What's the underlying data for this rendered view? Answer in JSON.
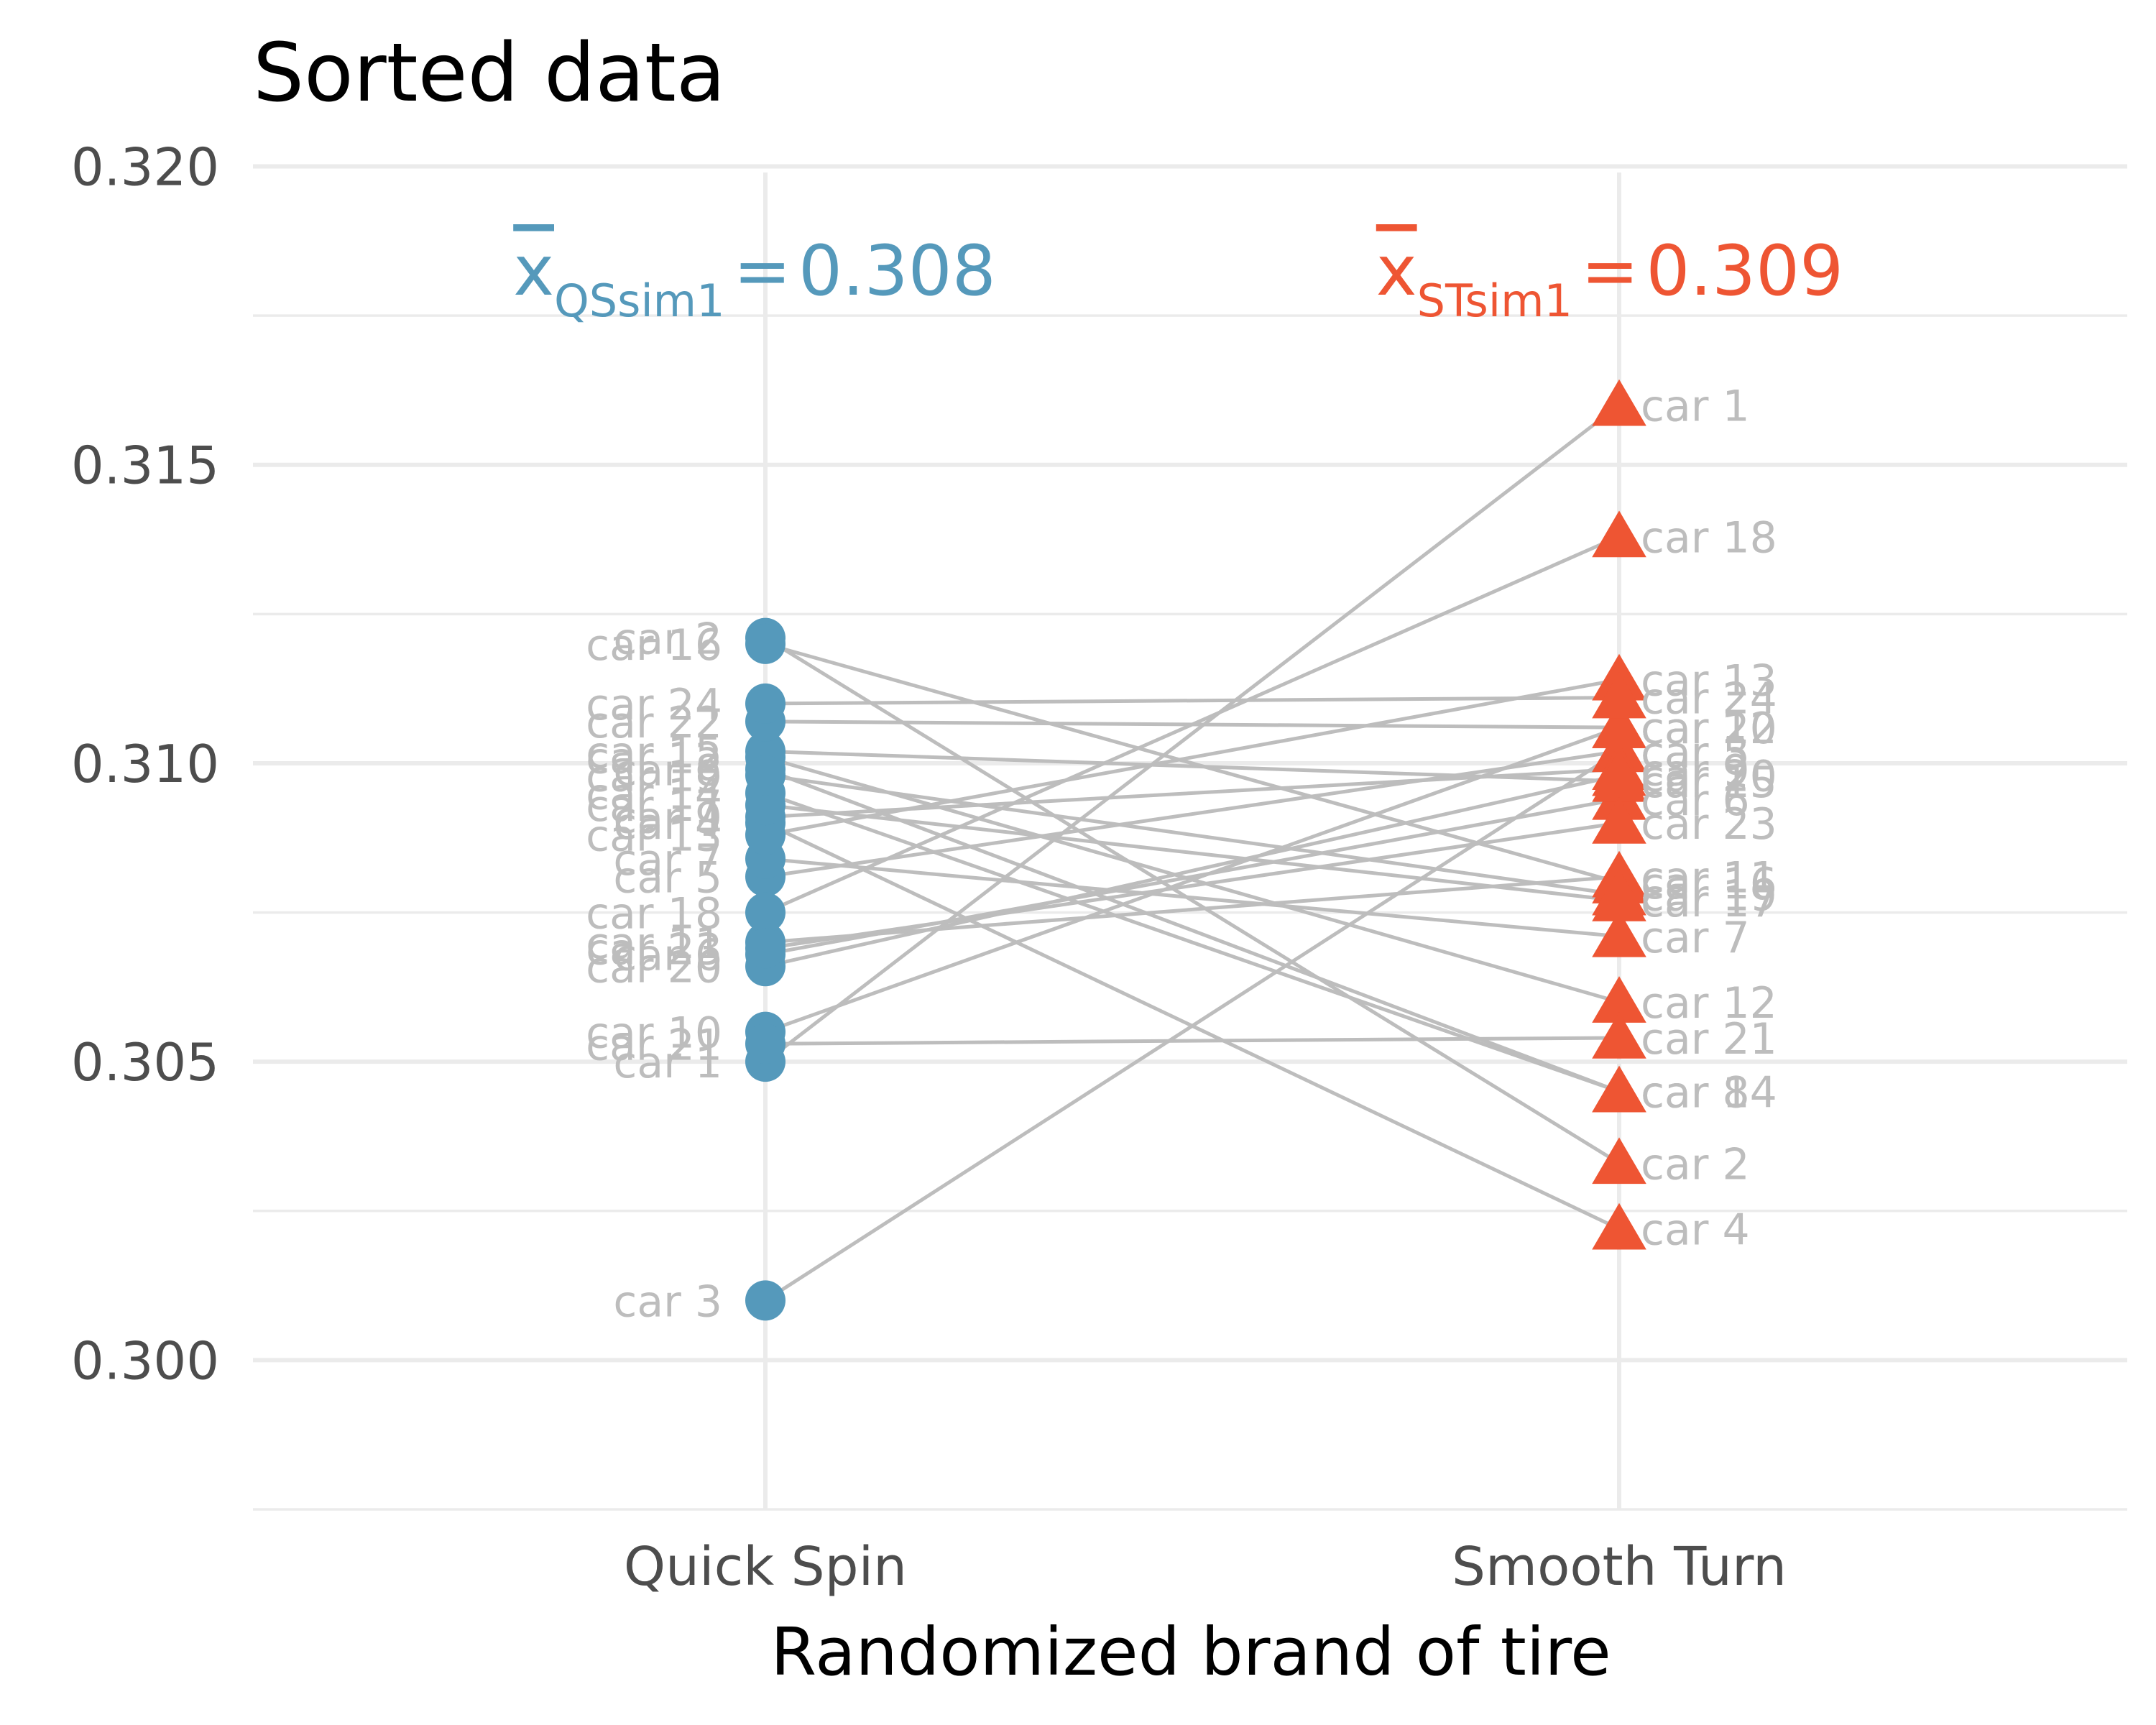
{
  "chart_data": {
    "type": "scatter",
    "title": "Sorted data",
    "xlabel": "Randomized brand of tire",
    "ylabel": "",
    "categories": [
      "Quick Spin",
      "Smooth Turn"
    ],
    "ylim": [
      0.2975,
      0.3205
    ],
    "yticks": [
      "0.300",
      "0.305",
      "0.310",
      "0.315",
      "0.320"
    ],
    "grid": true,
    "colors": {
      "Quick Spin": "#5599bb",
      "Smooth Turn": "#ee5533",
      "connector": "#bdbdbd"
    },
    "markers": {
      "Quick Spin": "circle",
      "Smooth Turn": "triangle"
    },
    "annotations": [
      {
        "series": "Quick Spin",
        "symbol": "x",
        "subscript": "QSsim1",
        "equals": "=",
        "value": "0.308"
      },
      {
        "series": "Smooth Turn",
        "symbol": "x",
        "subscript": "STsim1",
        "equals": "=",
        "value": "0.309"
      }
    ],
    "points": [
      {
        "label": "car 1",
        "quick_spin": 0.305,
        "smooth_turn": 0.316
      },
      {
        "label": "car 2",
        "quick_spin": 0.3121,
        "smooth_turn": 0.3033
      },
      {
        "label": "car 3",
        "quick_spin": 0.301,
        "smooth_turn": 0.3102
      },
      {
        "label": "car 4",
        "quick_spin": 0.309,
        "smooth_turn": 0.3022
      },
      {
        "label": "car 5",
        "quick_spin": 0.3081,
        "smooth_turn": 0.3102
      },
      {
        "label": "car 6",
        "quick_spin": 0.3068,
        "smooth_turn": 0.3094
      },
      {
        "label": "car 7",
        "quick_spin": 0.3084,
        "smooth_turn": 0.3071
      },
      {
        "label": "car 8",
        "quick_spin": 0.3099,
        "smooth_turn": 0.3045
      },
      {
        "label": "car 9",
        "quick_spin": 0.3091,
        "smooth_turn": 0.3099
      },
      {
        "label": "car 10",
        "quick_spin": 0.3055,
        "smooth_turn": 0.3106
      },
      {
        "label": "car 11",
        "quick_spin": 0.307,
        "smooth_turn": 0.3081
      },
      {
        "label": "car 12",
        "quick_spin": 0.3101,
        "smooth_turn": 0.306
      },
      {
        "label": "car 13",
        "quick_spin": 0.3088,
        "smooth_turn": 0.3114
      },
      {
        "label": "car 14",
        "quick_spin": 0.3095,
        "smooth_turn": 0.3045
      },
      {
        "label": "car 15",
        "quick_spin": 0.3102,
        "smooth_turn": 0.3097
      },
      {
        "label": "car 16",
        "quick_spin": 0.312,
        "smooth_turn": 0.308
      },
      {
        "label": "car 17",
        "quick_spin": 0.3093,
        "smooth_turn": 0.3077
      },
      {
        "label": "car 18",
        "quick_spin": 0.3075,
        "smooth_turn": 0.3138
      },
      {
        "label": "car 19",
        "quick_spin": 0.3098,
        "smooth_turn": 0.3078
      },
      {
        "label": "car 20",
        "quick_spin": 0.3066,
        "smooth_turn": 0.3098
      },
      {
        "label": "car 21",
        "quick_spin": 0.3053,
        "smooth_turn": 0.3054
      },
      {
        "label": "car 22",
        "quick_spin": 0.3107,
        "smooth_turn": 0.3106
      },
      {
        "label": "car 23",
        "quick_spin": 0.3069,
        "smooth_turn": 0.309
      },
      {
        "label": "car 24",
        "quick_spin": 0.311,
        "smooth_turn": 0.3111
      }
    ],
    "label_positions_note": "left labels for Quick Spin, right labels for Smooth Turn, jittered to match original"
  }
}
